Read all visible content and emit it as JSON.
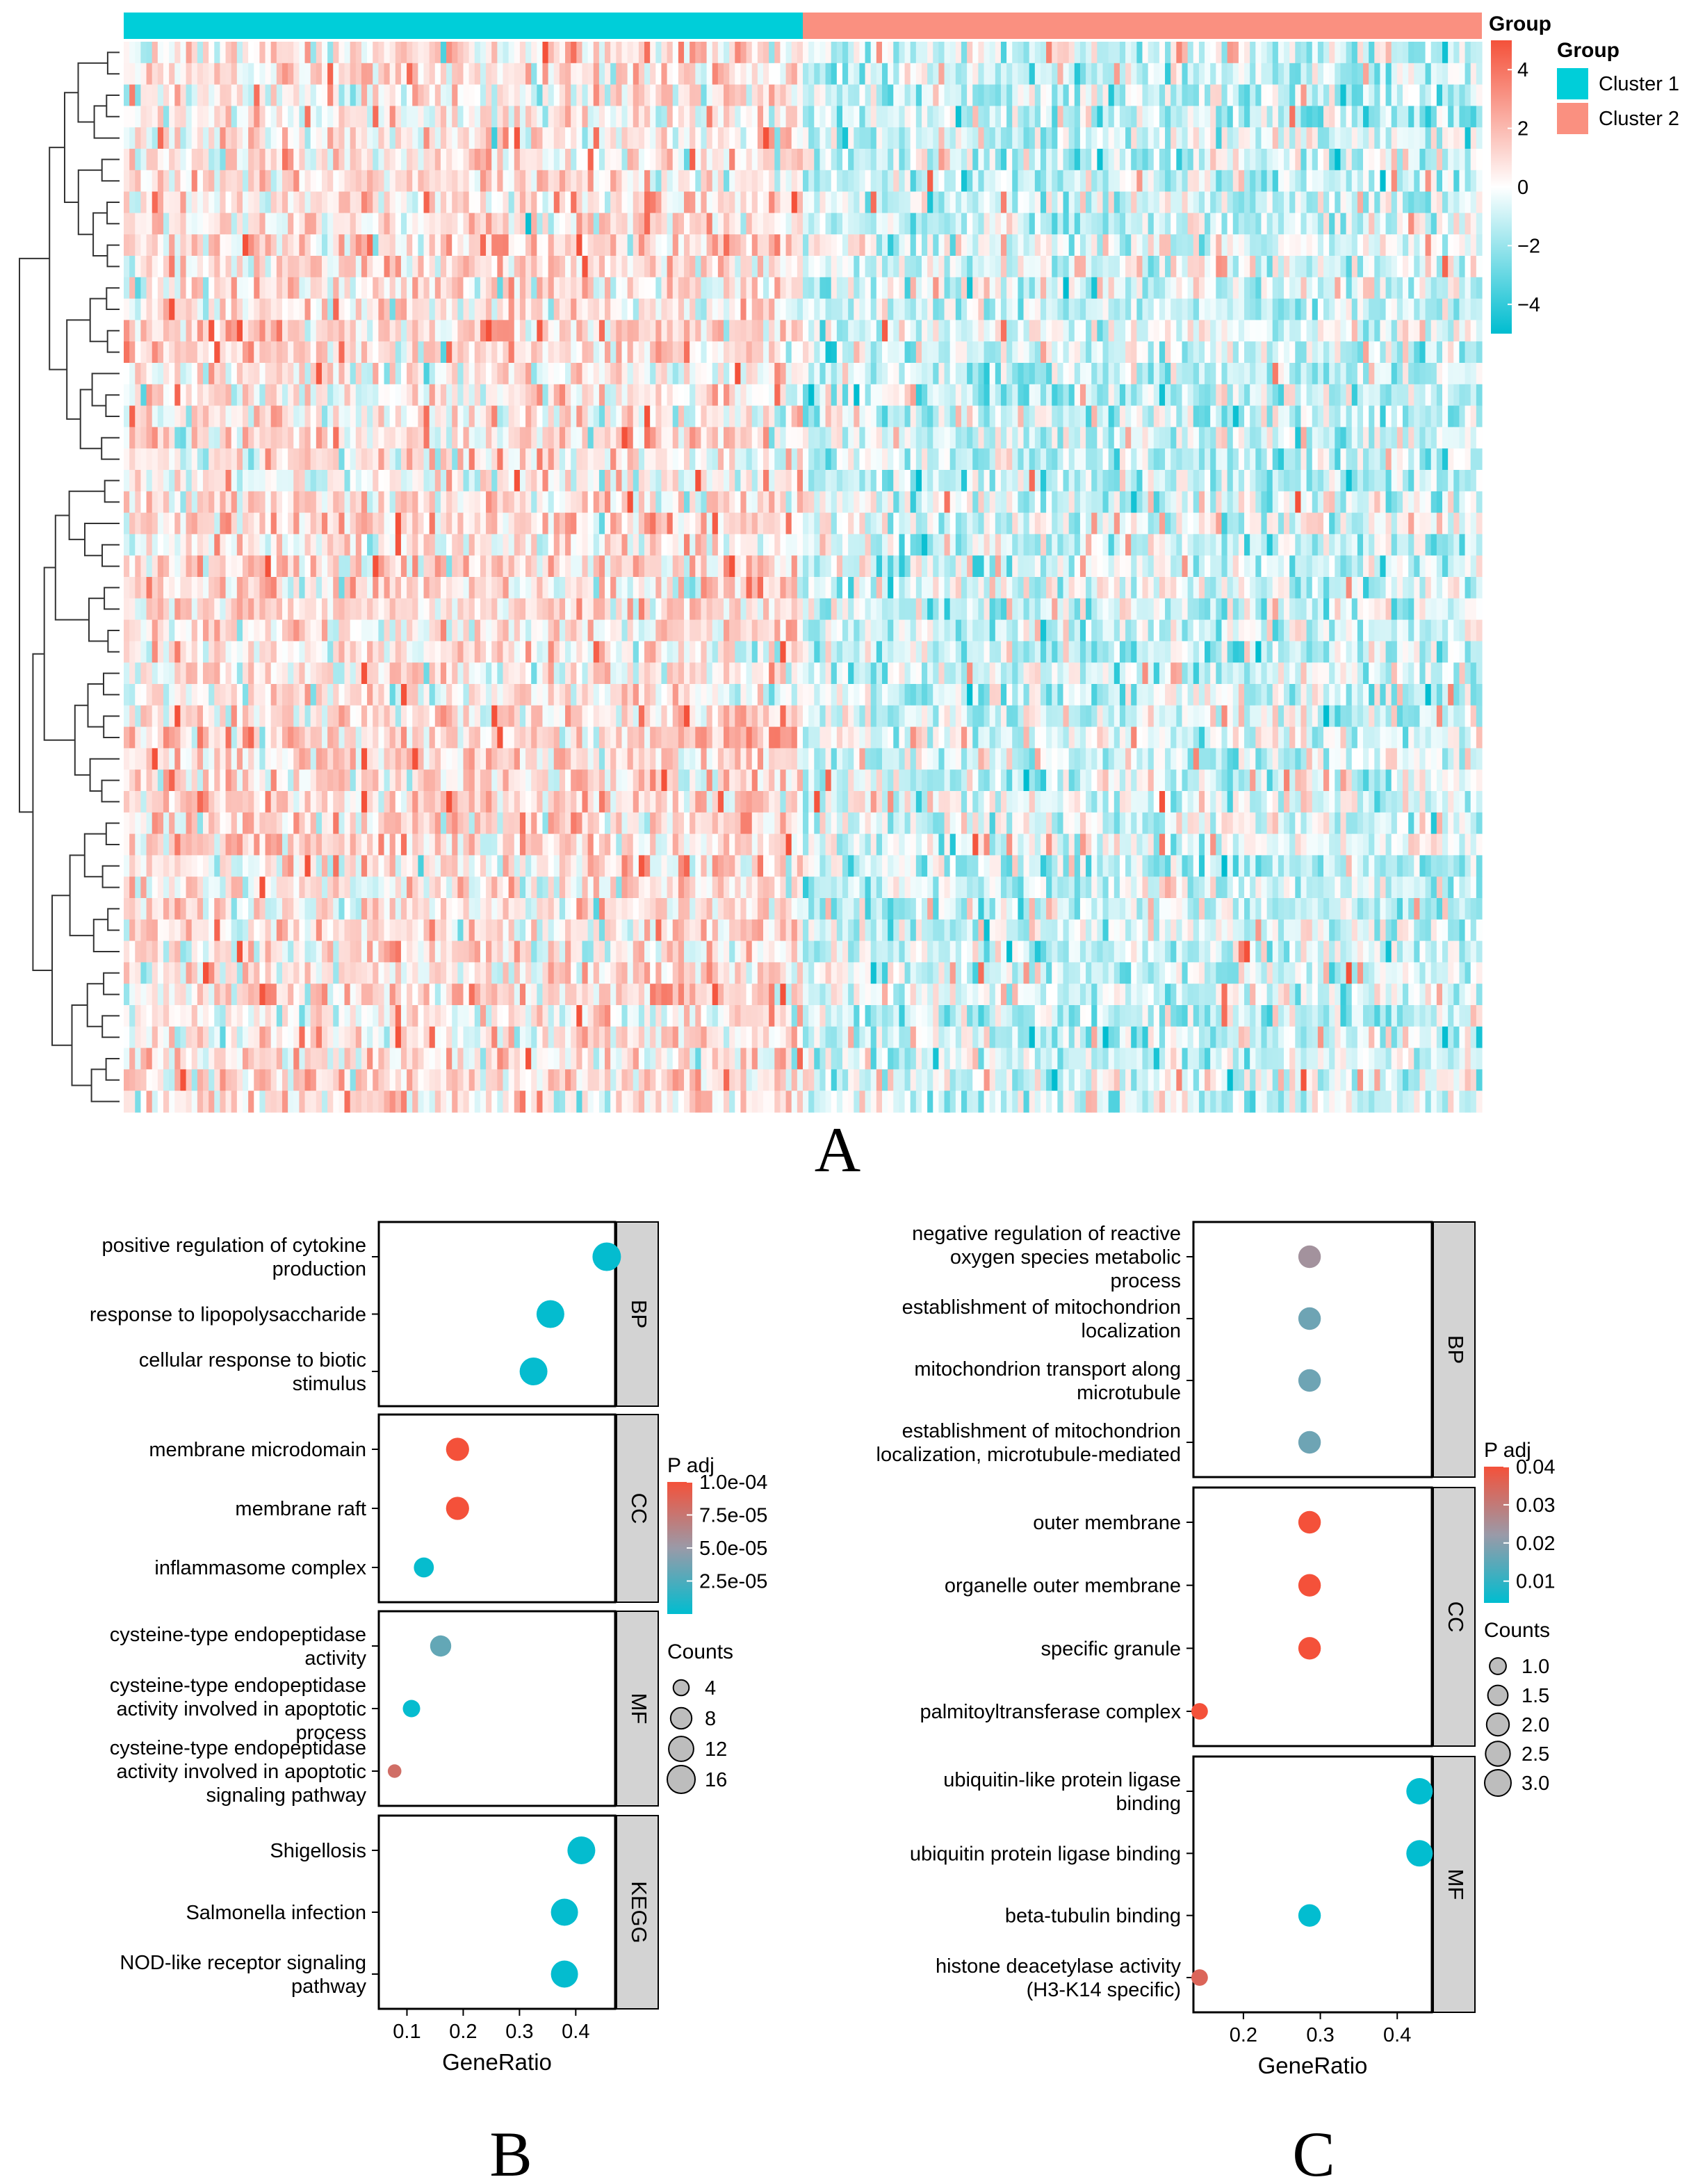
{
  "colors": {
    "cluster1": "#00CED9",
    "cluster2": "#FA9080",
    "heat_low": "#00BDD0",
    "heat_mid": "#FFFFFF",
    "heat_high": "#F4513A",
    "padj_low": "#00BDD0",
    "padj_high": "#F4513A",
    "strip_fill": "#D3D3D3"
  },
  "panels": {
    "a": {
      "letter": "A"
    },
    "b": {
      "letter": "B"
    },
    "c": {
      "letter": "C"
    }
  },
  "chart_data": [
    {
      "id": "A",
      "type": "heatmap",
      "title": "",
      "annotation_title": "Group",
      "groups": [
        {
          "name": "Cluster 1",
          "color": "#00CED9"
        },
        {
          "name": "Cluster 2",
          "color": "#FA9080"
        }
      ],
      "group_split_fraction": 0.5,
      "value_range": [
        -5,
        5
      ],
      "colorbar_ticks": [
        4,
        2,
        0,
        -2,
        -4
      ],
      "colorbar_labels": [
        "4",
        "2",
        "0",
        "−2",
        "−4"
      ],
      "n_rows": 50,
      "n_cols": 240,
      "dendrogram": "rows"
    },
    {
      "id": "B",
      "type": "scatter",
      "xlabel": "GeneRatio",
      "xlim": [
        0.05,
        0.47
      ],
      "xticks": [
        0.1,
        0.2,
        0.3,
        0.4
      ],
      "xtick_labels": [
        "0.1",
        "0.2",
        "0.3",
        "0.4"
      ],
      "color_legend": {
        "title": "P adj",
        "range": [
          0.0,
          0.0001
        ],
        "ticks": [
          0.0001,
          7.5e-05,
          5e-05,
          2.5e-05
        ],
        "tick_labels": [
          "1.0e-04",
          "7.5e-05",
          "5.0e-05",
          "2.5e-05"
        ]
      },
      "size_legend": {
        "title": "Counts",
        "range": [
          2,
          18
        ],
        "values": [
          4,
          8,
          12,
          16
        ],
        "labels": [
          "4",
          "8",
          "12",
          "16"
        ]
      },
      "facets": [
        {
          "name": "BP",
          "terms": [
            {
              "label": [
                "positive regulation of cytokine",
                "production"
              ],
              "x": 0.455,
              "padj": 1.2e-06,
              "count": 17
            },
            {
              "label": [
                "response to lipopolysaccharide"
              ],
              "x": 0.355,
              "padj": 1.4e-06,
              "count": 16
            },
            {
              "label": [
                "cellular response to biotic",
                "stimulus"
              ],
              "x": 0.325,
              "padj": 1.6e-06,
              "count": 16
            }
          ]
        },
        {
          "name": "CC",
          "terms": [
            {
              "label": [
                "membrane microdomain"
              ],
              "x": 0.19,
              "padj": 0.0001,
              "count": 10
            },
            {
              "label": [
                "membrane raft"
              ],
              "x": 0.19,
              "padj": 0.0001,
              "count": 10
            },
            {
              "label": [
                "inflammasome complex"
              ],
              "x": 0.13,
              "padj": 2e-06,
              "count": 7
            }
          ]
        },
        {
          "name": "MF",
          "terms": [
            {
              "label": [
                "cysteine-type endopeptidase",
                "activity"
              ],
              "x": 0.16,
              "padj": 3.2e-05,
              "count": 8
            },
            {
              "label": [
                "cysteine-type endopeptidase",
                "activity involved in apoptotic",
                "process"
              ],
              "x": 0.108,
              "padj": 1.8e-06,
              "count": 5
            },
            {
              "label": [
                "cysteine-type endopeptidase",
                "activity involved in apoptotic",
                "signaling pathway"
              ],
              "x": 0.078,
              "padj": 8e-05,
              "count": 3
            }
          ]
        },
        {
          "name": "KEGG",
          "terms": [
            {
              "label": [
                "Shigellosis"
              ],
              "x": 0.41,
              "padj": 1.2e-06,
              "count": 16
            },
            {
              "label": [
                "Salmonella infection"
              ],
              "x": 0.38,
              "padj": 1.3e-06,
              "count": 15
            },
            {
              "label": [
                "NOD-like receptor signaling",
                "pathway"
              ],
              "x": 0.38,
              "padj": 1.4e-06,
              "count": 15
            }
          ]
        }
      ]
    },
    {
      "id": "C",
      "type": "scatter",
      "xlabel": "GeneRatio",
      "xlim": [
        0.135,
        0.445
      ],
      "xticks": [
        0.2,
        0.3,
        0.4
      ],
      "xtick_labels": [
        "0.2",
        "0.3",
        "0.4"
      ],
      "color_legend": {
        "title": "P adj",
        "range": [
          0.0043,
          0.04
        ],
        "ticks": [
          0.04,
          0.03,
          0.02,
          0.01
        ],
        "tick_labels": [
          "0.04",
          "0.03",
          "0.02",
          "0.01"
        ]
      },
      "size_legend": {
        "title": "Counts",
        "range": [
          0.6,
          3.4
        ],
        "values": [
          1.0,
          1.5,
          2.0,
          2.5,
          3.0
        ],
        "labels": [
          "1.0",
          "1.5",
          "2.0",
          "2.5",
          "3.0"
        ]
      },
      "facets": [
        {
          "name": "BP",
          "terms": [
            {
              "label": [
                "negative regulation of reactive",
                "oxygen species metabolic",
                "process"
              ],
              "x": 0.286,
              "padj": 0.024,
              "count": 2
            },
            {
              "label": [
                "establishment of mitochondrion",
                "localization"
              ],
              "x": 0.286,
              "padj": 0.017,
              "count": 2
            },
            {
              "label": [
                "mitochondrion transport along",
                "microtubule"
              ],
              "x": 0.286,
              "padj": 0.017,
              "count": 2
            },
            {
              "label": [
                "establishment of mitochondrion",
                "localization, microtubule-mediated"
              ],
              "x": 0.286,
              "padj": 0.017,
              "count": 2
            }
          ]
        },
        {
          "name": "CC",
          "terms": [
            {
              "label": [
                "outer membrane"
              ],
              "x": 0.286,
              "padj": 0.04,
              "count": 2
            },
            {
              "label": [
                "organelle outer membrane"
              ],
              "x": 0.286,
              "padj": 0.04,
              "count": 2
            },
            {
              "label": [
                "specific granule"
              ],
              "x": 0.286,
              "padj": 0.04,
              "count": 2
            },
            {
              "label": [
                "palmitoyltransferase complex"
              ],
              "x": 0.143,
              "padj": 0.04,
              "count": 1
            }
          ]
        },
        {
          "name": "MF",
          "terms": [
            {
              "label": [
                "ubiquitin-like protein ligase",
                "binding"
              ],
              "x": 0.429,
              "padj": 0.0045,
              "count": 3
            },
            {
              "label": [
                "ubiquitin protein ligase binding"
              ],
              "x": 0.429,
              "padj": 0.0045,
              "count": 3
            },
            {
              "label": [
                "beta-tubulin binding"
              ],
              "x": 0.286,
              "padj": 0.0045,
              "count": 2
            },
            {
              "label": [
                "histone deacetylase activity",
                "(H3-K14 specific)"
              ],
              "x": 0.143,
              "padj": 0.035,
              "count": 1
            }
          ]
        }
      ]
    }
  ]
}
